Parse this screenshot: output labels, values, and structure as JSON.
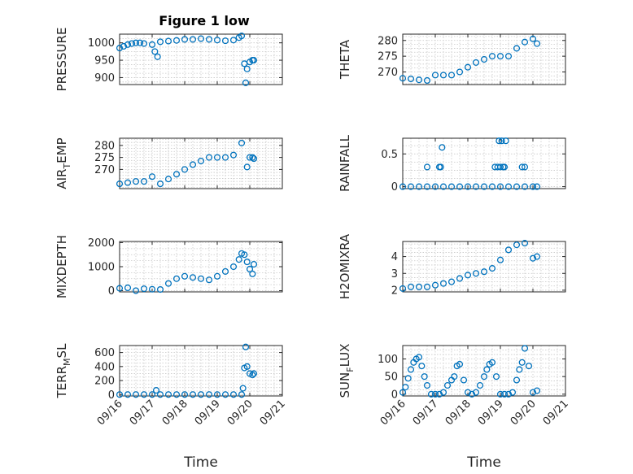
{
  "figure": {
    "title": "Figure 1 low"
  },
  "chart_data": [
    {
      "type": "scatter",
      "title": "Figure 1 low",
      "ylabel": "PRESSURE",
      "xlabel": "",
      "subscript": null,
      "xlim": [
        "09/16",
        "09/21"
      ],
      "ylim": [
        880,
        1025
      ],
      "yticks": [
        900,
        950,
        1000
      ],
      "grid": true,
      "x": [
        "09/16 00:00",
        "09/16 03:00",
        "09/16 06:00",
        "09/16 09:00",
        "09/16 12:00",
        "09/16 15:00",
        "09/16 18:00",
        "09/17 00:00",
        "09/17 02:00",
        "09/17 04:00",
        "09/17 06:00",
        "09/17 12:00",
        "09/17 18:00",
        "09/18 00:00",
        "09/18 06:00",
        "09/18 12:00",
        "09/18 18:00",
        "09/19 00:00",
        "09/19 06:00",
        "09/19 12:00",
        "09/19 16:00",
        "09/19 18:00",
        "09/19 20:00",
        "09/19 21:00",
        "09/19 22:00",
        "09/20 00:00",
        "09/20 02:00",
        "09/20 03:00"
      ],
      "y": [
        985,
        990,
        995,
        998,
        1000,
        1000,
        998,
        995,
        975,
        960,
        1003,
        1005,
        1007,
        1010,
        1010,
        1012,
        1010,
        1008,
        1006,
        1008,
        1015,
        1020,
        940,
        885,
        925,
        945,
        950,
        950
      ]
    },
    {
      "type": "scatter",
      "title": "",
      "ylabel": "THETA",
      "xlabel": "",
      "subscript": null,
      "xlim": [
        "09/16",
        "09/21"
      ],
      "ylim": [
        266,
        282
      ],
      "yticks": [
        270,
        275,
        280
      ],
      "grid": true,
      "x": [
        "09/16 00:00",
        "09/16 06:00",
        "09/16 12:00",
        "09/16 18:00",
        "09/17 00:00",
        "09/17 06:00",
        "09/17 12:00",
        "09/17 18:00",
        "09/18 00:00",
        "09/18 06:00",
        "09/18 12:00",
        "09/18 18:00",
        "09/19 00:00",
        "09/19 06:00",
        "09/19 12:00",
        "09/19 18:00",
        "09/20 00:00",
        "09/20 03:00"
      ],
      "y": [
        268,
        267.8,
        267.5,
        267.3,
        269,
        269,
        269,
        270,
        271.5,
        273,
        274,
        275,
        275,
        275,
        277.5,
        279.5,
        280.5,
        279
      ]
    },
    {
      "type": "scatter",
      "title": "",
      "ylabel": "AIR_TEMP",
      "ylabel_main": "AIR",
      "ylabel_sub": "T",
      "ylabel_rest": "EMP",
      "xlabel": "",
      "xlim": [
        "09/16",
        "09/21"
      ],
      "ylim": [
        262,
        283
      ],
      "yticks": [
        270,
        275,
        280
      ],
      "grid": true,
      "x": [
        "09/16 00:00",
        "09/16 06:00",
        "09/16 12:00",
        "09/16 18:00",
        "09/17 00:00",
        "09/17 06:00",
        "09/17 12:00",
        "09/17 18:00",
        "09/18 00:00",
        "09/18 06:00",
        "09/18 12:00",
        "09/18 18:00",
        "09/19 00:00",
        "09/19 06:00",
        "09/19 12:00",
        "09/19 18:00",
        "09/19 22:00",
        "09/20 00:00",
        "09/20 02:00",
        "09/20 03:00"
      ],
      "y": [
        264,
        264.5,
        265,
        265,
        267,
        264,
        266,
        268,
        270,
        272,
        273.5,
        275,
        275,
        275,
        276,
        281,
        271,
        275,
        275,
        274.5
      ]
    },
    {
      "type": "scatter",
      "title": "",
      "ylabel": "RAINFALL",
      "xlabel": "",
      "subscript": null,
      "xlim": [
        "09/16",
        "09/21"
      ],
      "ylim": [
        -0.03,
        0.74
      ],
      "yticks": [
        0,
        0.5
      ],
      "grid": true,
      "x": [
        "09/16 00:00",
        "09/16 06:00",
        "09/16 12:00",
        "09/16 18:00",
        "09/17 00:00",
        "09/17 06:00",
        "09/17 12:00",
        "09/17 18:00",
        "09/18 00:00",
        "09/18 06:00",
        "09/18 12:00",
        "09/18 18:00",
        "09/19 00:00",
        "09/19 06:00",
        "09/19 12:00",
        "09/19 18:00",
        "09/20 00:00",
        "09/20 03:00",
        "09/16 18:00",
        "09/17 03:00",
        "09/17 04:00",
        "09/17 05:00",
        "09/18 20:00",
        "09/18 22:00",
        "09/19 00:00",
        "09/19 02:00",
        "09/19 03:00",
        "09/19 16:00",
        "09/19 18:00",
        "09/18 23:00",
        "09/19 01:00",
        "09/19 04:00"
      ],
      "y": [
        0,
        0,
        0,
        0,
        0,
        0,
        0,
        0,
        0,
        0,
        0,
        0,
        0,
        0,
        0,
        0,
        0,
        0,
        0.3,
        0.3,
        0.3,
        0.6,
        0.3,
        0.3,
        0.3,
        0.3,
        0.3,
        0.3,
        0.3,
        0.7,
        0.7,
        0.7
      ]
    },
    {
      "type": "scatter",
      "title": "",
      "ylabel": "MIXDEPTH",
      "xlabel": "",
      "subscript": null,
      "xlim": [
        "09/16",
        "09/21"
      ],
      "ylim": [
        -50,
        2050
      ],
      "yticks": [
        0,
        1000,
        2000
      ],
      "grid": true,
      "x": [
        "09/16 00:00",
        "09/16 06:00",
        "09/16 12:00",
        "09/16 18:00",
        "09/17 00:00",
        "09/17 06:00",
        "09/17 12:00",
        "09/17 18:00",
        "09/18 00:00",
        "09/18 06:00",
        "09/18 12:00",
        "09/18 18:00",
        "09/19 00:00",
        "09/19 06:00",
        "09/19 12:00",
        "09/19 16:00",
        "09/19 18:00",
        "09/19 20:00",
        "09/19 22:00",
        "09/20 00:00",
        "09/20 02:00",
        "09/20 03:00"
      ],
      "y": [
        100,
        120,
        0,
        80,
        60,
        50,
        300,
        500,
        600,
        550,
        500,
        450,
        600,
        800,
        1000,
        1300,
        1550,
        1500,
        1200,
        900,
        700,
        1100
      ]
    },
    {
      "type": "scatter",
      "title": "",
      "ylabel": "H2OMIXRA",
      "xlabel": "",
      "subscript": null,
      "xlim": [
        "09/16",
        "09/21"
      ],
      "ylim": [
        1.9,
        4.9
      ],
      "yticks": [
        2,
        3,
        4
      ],
      "grid": true,
      "x": [
        "09/16 00:00",
        "09/16 06:00",
        "09/16 12:00",
        "09/16 18:00",
        "09/17 00:00",
        "09/17 06:00",
        "09/17 12:00",
        "09/17 18:00",
        "09/18 00:00",
        "09/18 06:00",
        "09/18 12:00",
        "09/18 18:00",
        "09/19 00:00",
        "09/19 06:00",
        "09/19 12:00",
        "09/19 18:00",
        "09/20 00:00",
        "09/20 03:00"
      ],
      "y": [
        2.1,
        2.2,
        2.2,
        2.2,
        2.3,
        2.4,
        2.5,
        2.7,
        2.9,
        3.0,
        3.1,
        3.3,
        3.8,
        4.4,
        4.7,
        4.8,
        3.9,
        4.0
      ]
    },
    {
      "type": "scatter",
      "title": "",
      "ylabel": "TERR_MSL",
      "ylabel_main": "TERR",
      "ylabel_sub": "M",
      "ylabel_rest": "SL",
      "xlabel": "Time",
      "xlim": [
        "09/16",
        "09/21"
      ],
      "ylim": [
        -20,
        700
      ],
      "yticks": [
        0,
        200,
        400,
        600
      ],
      "grid": true,
      "x": [
        "09/16 00:00",
        "09/16 06:00",
        "09/16 12:00",
        "09/16 18:00",
        "09/17 00:00",
        "09/17 03:00",
        "09/17 06:00",
        "09/17 12:00",
        "09/17 18:00",
        "09/18 00:00",
        "09/18 06:00",
        "09/18 12:00",
        "09/18 18:00",
        "09/19 00:00",
        "09/19 06:00",
        "09/19 12:00",
        "09/19 18:00",
        "09/19 19:00",
        "09/19 20:00",
        "09/19 21:00",
        "09/19 22:00",
        "09/20 00:00",
        "09/20 02:00",
        "09/20 03:00"
      ],
      "y": [
        0,
        0,
        0,
        0,
        0,
        60,
        0,
        0,
        0,
        0,
        0,
        0,
        0,
        0,
        0,
        0,
        0,
        90,
        380,
        680,
        400,
        300,
        280,
        300
      ]
    },
    {
      "type": "scatter",
      "title": "",
      "ylabel": "SUN_FLUX",
      "ylabel_main": "SUN",
      "ylabel_sub": "F",
      "ylabel_rest": "LUX",
      "xlabel": "Time",
      "xlim": [
        "09/16",
        "09/21"
      ],
      "ylim": [
        -5,
        138
      ],
      "yticks": [
        0,
        50,
        100
      ],
      "grid": true,
      "x": [
        "09/16 00:00",
        "09/16 02:00",
        "09/16 04:00",
        "09/16 06:00",
        "09/16 08:00",
        "09/16 10:00",
        "09/16 12:00",
        "09/16 14:00",
        "09/16 16:00",
        "09/16 18:00",
        "09/16 21:00",
        "09/17 00:00",
        "09/17 03:00",
        "09/17 06:00",
        "09/17 09:00",
        "09/17 12:00",
        "09/17 14:00",
        "09/17 16:00",
        "09/17 18:00",
        "09/17 21:00",
        "09/18 00:00",
        "09/18 03:00",
        "09/18 06:00",
        "09/18 09:00",
        "09/18 12:00",
        "09/18 14:00",
        "09/18 16:00",
        "09/18 18:00",
        "09/18 21:00",
        "09/19 00:00",
        "09/19 03:00",
        "09/19 06:00",
        "09/19 09:00",
        "09/19 12:00",
        "09/19 14:00",
        "09/19 16:00",
        "09/19 18:00",
        "09/19 21:00",
        "09/20 00:00",
        "09/20 03:00"
      ],
      "y": [
        5,
        20,
        45,
        70,
        90,
        100,
        105,
        80,
        50,
        25,
        0,
        0,
        0,
        5,
        25,
        40,
        50,
        80,
        85,
        40,
        5,
        0,
        5,
        25,
        50,
        70,
        85,
        90,
        50,
        0,
        0,
        0,
        5,
        40,
        70,
        90,
        130,
        80,
        5,
        10
      ]
    }
  ]
}
